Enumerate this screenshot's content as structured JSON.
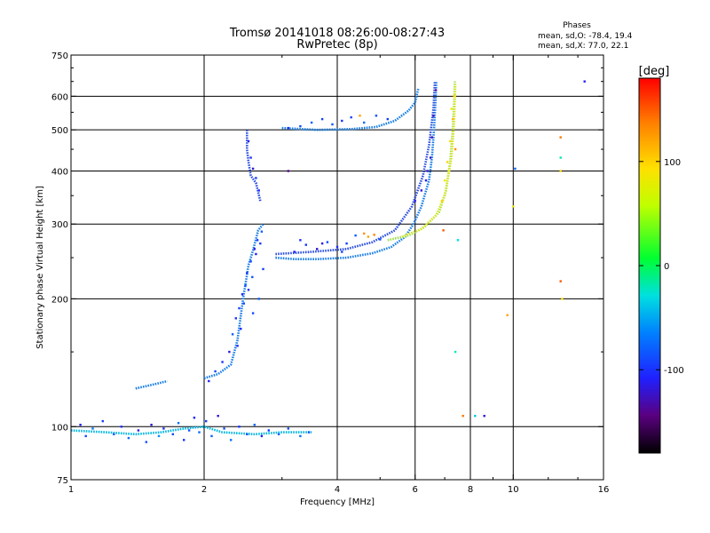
{
  "chart_data": {
    "type": "scatter",
    "title": "Tromsø 20141018 08:26:00-08:27:43",
    "subtitle": "RwPretec (8p)",
    "xlabel": "Frequency [MHz]",
    "ylabel": "Stationary phase Virtual Height [km]",
    "xscale": "log",
    "yscale": "log",
    "xlim": [
      1,
      16
    ],
    "ylim": [
      75,
      750
    ],
    "xticks": [
      1,
      2,
      4,
      6,
      8,
      10,
      16
    ],
    "xtick_labels": [
      "1",
      "2",
      "4",
      "6",
      "8",
      "10",
      "16"
    ],
    "xgrid": [
      2,
      4,
      6,
      8,
      10
    ],
    "yticks": [
      75,
      100,
      200,
      300,
      400,
      500,
      600,
      750
    ],
    "ytick_labels": [
      "75",
      "100",
      "200",
      "300",
      "400",
      "500",
      "600",
      "750"
    ],
    "ygrid": [
      100,
      200,
      300,
      400,
      500,
      600
    ],
    "grid": true,
    "stats": {
      "heading": "Phases",
      "line_o": "mean, sd,O: -78.4, 19.4",
      "line_x": "mean, sd,X:  77.0, 22.1"
    },
    "colorbar": {
      "label": "[deg]",
      "range": [
        -180,
        180
      ],
      "ticks": [
        100,
        0,
        -100
      ],
      "tick_labels": [
        "100",
        "0",
        "-100"
      ],
      "colormap": "rainbow"
    },
    "traces": [
      {
        "kind": "line",
        "color": "#1a7fe6",
        "points": [
          [
            2.9,
            250
          ],
          [
            3.2,
            248
          ],
          [
            3.6,
            248
          ],
          [
            4.2,
            250
          ],
          [
            4.8,
            256
          ],
          [
            5.3,
            265
          ],
          [
            5.7,
            280
          ],
          [
            5.95,
            300
          ],
          [
            6.2,
            330
          ],
          [
            6.45,
            380
          ],
          [
            6.55,
            430
          ],
          [
            6.62,
            500
          ],
          [
            6.68,
            600
          ],
          [
            6.7,
            650
          ]
        ]
      },
      {
        "kind": "line",
        "color": "#2c4fe0",
        "points": [
          [
            2.9,
            255
          ],
          [
            3.5,
            258
          ],
          [
            4.2,
            262
          ],
          [
            4.8,
            272
          ],
          [
            5.4,
            290
          ],
          [
            5.9,
            330
          ],
          [
            6.25,
            390
          ],
          [
            6.45,
            460
          ],
          [
            6.6,
            560
          ],
          [
            6.65,
            650
          ]
        ]
      },
      {
        "kind": "line",
        "color": "#9ee04a",
        "points": [
          [
            5.2,
            275
          ],
          [
            5.8,
            282
          ],
          [
            6.3,
            295
          ],
          [
            6.8,
            320
          ],
          [
            7.05,
            360
          ],
          [
            7.2,
            420
          ],
          [
            7.3,
            500
          ],
          [
            7.35,
            580
          ],
          [
            7.38,
            650
          ]
        ]
      },
      {
        "kind": "line",
        "color": "#d8e62a",
        "points": [
          [
            5.6,
            280
          ],
          [
            6.2,
            292
          ],
          [
            6.7,
            315
          ],
          [
            7.0,
            350
          ],
          [
            7.25,
            430
          ],
          [
            7.35,
            520
          ],
          [
            7.4,
            640
          ]
        ]
      },
      {
        "kind": "line",
        "color": "#1a7fe6",
        "points": [
          [
            3.0,
            505
          ],
          [
            3.6,
            500
          ],
          [
            4.3,
            502
          ],
          [
            4.9,
            508
          ],
          [
            5.4,
            525
          ],
          [
            5.8,
            555
          ],
          [
            6.0,
            580
          ],
          [
            6.1,
            625
          ]
        ]
      },
      {
        "kind": "line",
        "color": "#00b7e0",
        "points": [
          [
            1.0,
            98
          ],
          [
            1.2,
            97
          ],
          [
            1.4,
            96
          ],
          [
            1.6,
            97
          ],
          [
            1.8,
            99
          ],
          [
            2.0,
            100
          ],
          [
            2.2,
            97
          ],
          [
            2.6,
            96
          ],
          [
            3.0,
            97
          ],
          [
            3.5,
            97
          ]
        ]
      },
      {
        "kind": "line",
        "color": "#1a7fe6",
        "points": [
          [
            2.0,
            130
          ],
          [
            2.15,
            133
          ],
          [
            2.3,
            140
          ],
          [
            2.38,
            160
          ],
          [
            2.45,
            200
          ],
          [
            2.52,
            240
          ],
          [
            2.58,
            260
          ],
          [
            2.65,
            290
          ],
          [
            2.72,
            300
          ]
        ]
      },
      {
        "kind": "line",
        "color": "#2c4fe0",
        "points": [
          [
            2.5,
            500
          ],
          [
            2.5,
            450
          ],
          [
            2.52,
            420
          ],
          [
            2.55,
            390
          ],
          [
            2.62,
            375
          ],
          [
            2.68,
            340
          ]
        ]
      },
      {
        "kind": "line",
        "color": "#1a7fe6",
        "points": [
          [
            1.4,
            123
          ],
          [
            1.5,
            125
          ],
          [
            1.6,
            127
          ],
          [
            1.65,
            128
          ]
        ]
      }
    ],
    "scatter_points": [
      [
        1.05,
        101,
        -110
      ],
      [
        1.08,
        95,
        -90
      ],
      [
        1.12,
        99,
        -70
      ],
      [
        1.18,
        103,
        -95
      ],
      [
        1.25,
        96,
        -80
      ],
      [
        1.3,
        100,
        -100
      ],
      [
        1.35,
        94,
        -75
      ],
      [
        1.42,
        98,
        -115
      ],
      [
        1.48,
        92,
        -85
      ],
      [
        1.52,
        101,
        -120
      ],
      [
        1.58,
        95,
        -60
      ],
      [
        1.62,
        99,
        -105
      ],
      [
        1.7,
        96,
        -90
      ],
      [
        1.75,
        102,
        -70
      ],
      [
        1.8,
        93,
        -100
      ],
      [
        1.85,
        98,
        -85
      ],
      [
        1.9,
        105,
        -110
      ],
      [
        1.95,
        97,
        -75
      ],
      [
        2.02,
        103,
        -95
      ],
      [
        2.08,
        95,
        -80
      ],
      [
        2.15,
        106,
        -120
      ],
      [
        2.22,
        99,
        -90
      ],
      [
        2.3,
        93,
        -70
      ],
      [
        2.4,
        100,
        -100
      ],
      [
        2.5,
        96,
        -85
      ],
      [
        2.6,
        101,
        -75
      ],
      [
        2.7,
        95,
        -110
      ],
      [
        2.8,
        98,
        -95
      ],
      [
        2.95,
        96,
        -80
      ],
      [
        3.1,
        99,
        -90
      ],
      [
        3.3,
        95,
        -75
      ],
      [
        3.45,
        97,
        -85
      ],
      [
        2.05,
        128,
        -110
      ],
      [
        2.12,
        135,
        -90
      ],
      [
        2.2,
        142,
        -100
      ],
      [
        2.28,
        150,
        -120
      ],
      [
        2.32,
        165,
        -80
      ],
      [
        2.36,
        180,
        -100
      ],
      [
        2.4,
        190,
        -95
      ],
      [
        2.44,
        205,
        -110
      ],
      [
        2.48,
        215,
        -85
      ],
      [
        2.5,
        230,
        -100
      ],
      [
        2.55,
        245,
        -90
      ],
      [
        2.6,
        262,
        -115
      ],
      [
        2.64,
        275,
        -95
      ],
      [
        2.7,
        288,
        -80
      ],
      [
        2.42,
        170,
        -105
      ],
      [
        2.46,
        195,
        -90
      ],
      [
        2.52,
        210,
        -100
      ],
      [
        2.57,
        225,
        -85
      ],
      [
        2.62,
        255,
        -110
      ],
      [
        2.68,
        270,
        -95
      ],
      [
        2.38,
        155,
        -100
      ],
      [
        2.58,
        185,
        -90
      ],
      [
        2.66,
        200,
        -80
      ],
      [
        2.72,
        235,
        -95
      ],
      [
        2.52,
        470,
        -110
      ],
      [
        2.55,
        430,
        -100
      ],
      [
        2.58,
        405,
        -120
      ],
      [
        2.62,
        385,
        -95
      ],
      [
        2.66,
        360,
        -105
      ],
      [
        3.1,
        505,
        -100
      ],
      [
        3.3,
        510,
        -90
      ],
      [
        3.5,
        520,
        -80
      ],
      [
        3.7,
        530,
        -95
      ],
      [
        3.9,
        515,
        -85
      ],
      [
        4.1,
        525,
        -100
      ],
      [
        4.3,
        535,
        -90
      ],
      [
        4.6,
        520,
        -75
      ],
      [
        4.9,
        540,
        -85
      ],
      [
        5.2,
        530,
        -95
      ],
      [
        4.5,
        540,
        120
      ],
      [
        3.2,
        258,
        -110
      ],
      [
        3.4,
        268,
        -100
      ],
      [
        3.6,
        262,
        -120
      ],
      [
        3.8,
        272,
        -90
      ],
      [
        4.0,
        265,
        -105
      ],
      [
        4.2,
        270,
        -95
      ],
      [
        4.4,
        282,
        -80
      ],
      [
        4.6,
        285,
        130
      ],
      [
        4.7,
        280,
        120
      ],
      [
        4.85,
        283,
        135
      ],
      [
        5.0,
        276,
        -90
      ],
      [
        3.3,
        275,
        -100
      ],
      [
        3.7,
        270,
        -115
      ],
      [
        4.1,
        258,
        -95
      ],
      [
        6.0,
        340,
        -110
      ],
      [
        6.2,
        360,
        -120
      ],
      [
        6.4,
        400,
        -115
      ],
      [
        6.55,
        480,
        -130
      ],
      [
        6.6,
        540,
        -125
      ],
      [
        6.68,
        620,
        -135
      ],
      [
        6.5,
        430,
        -120
      ],
      [
        6.35,
        380,
        -110
      ],
      [
        7.0,
        380,
        90
      ],
      [
        7.1,
        420,
        100
      ],
      [
        7.2,
        470,
        95
      ],
      [
        7.3,
        530,
        110
      ],
      [
        7.35,
        600,
        100
      ],
      [
        7.25,
        560,
        85
      ],
      [
        7.15,
        400,
        80
      ],
      [
        6.9,
        340,
        100
      ],
      [
        7.4,
        450,
        130
      ],
      [
        3.1,
        400,
        -140
      ],
      [
        6.95,
        290,
        150
      ],
      [
        7.4,
        150,
        -20
      ],
      [
        7.7,
        106,
        140
      ],
      [
        8.2,
        106,
        -40
      ],
      [
        8.6,
        106,
        -120
      ],
      [
        9.7,
        183,
        120
      ],
      [
        10.0,
        330,
        80
      ],
      [
        10.1,
        405,
        -80
      ],
      [
        12.8,
        480,
        140
      ],
      [
        12.8,
        430,
        -20
      ],
      [
        12.8,
        400,
        100
      ],
      [
        12.8,
        220,
        150
      ],
      [
        12.9,
        200,
        90
      ],
      [
        14.5,
        650,
        -110
      ],
      [
        7.5,
        275,
        -30
      ]
    ]
  }
}
